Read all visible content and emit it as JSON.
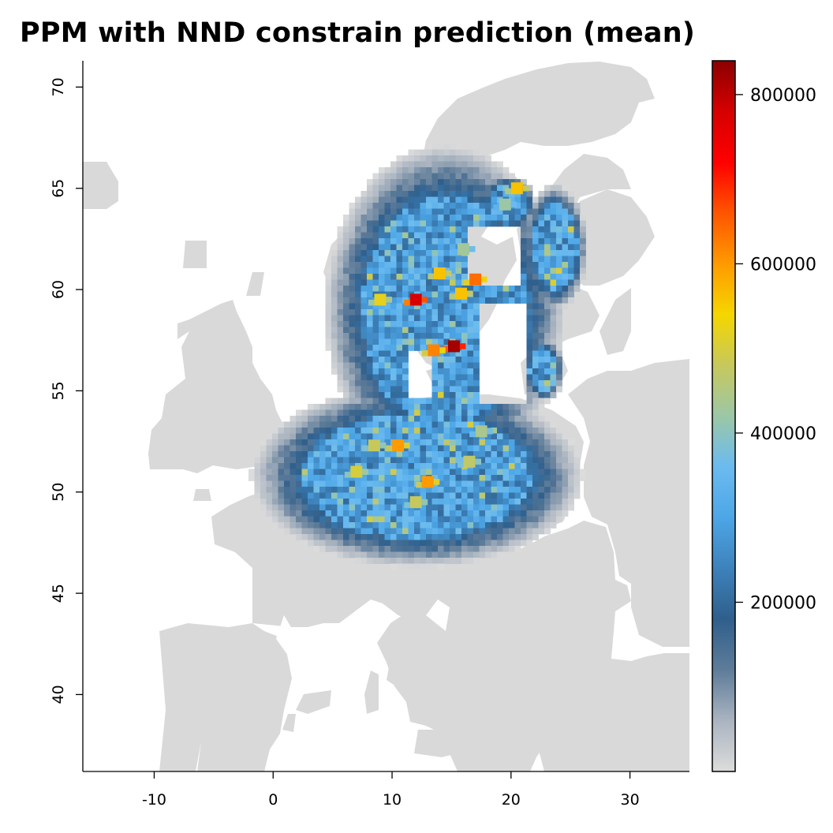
{
  "title": "PPM with NND constrain prediction (mean)",
  "colors": {
    "land": "#d9d9d9",
    "scale": [
      "#dcdcdc",
      "#aab4c0",
      "#5e7c99",
      "#2f5f8c",
      "#3d82bb",
      "#4da6e6",
      "#6bbbf0",
      "#9cc7a6",
      "#c7c85c",
      "#f5d600",
      "#ff9a00",
      "#ff5500",
      "#ff0000",
      "#d60000",
      "#8b0000"
    ]
  },
  "chart_data": {
    "type": "heatmap",
    "title": "PPM with NND constrain prediction (mean)",
    "xlabel": "",
    "ylabel": "",
    "xlim": [
      -16,
      35
    ],
    "ylim": [
      36.2,
      71.3
    ],
    "x_ticks": [
      -10,
      0,
      10,
      20,
      30
    ],
    "y_ticks": [
      40,
      45,
      50,
      55,
      60,
      65,
      70
    ],
    "legend": {
      "placement": "right",
      "range": [
        0,
        840000
      ],
      "ticks": [
        200000,
        400000,
        600000,
        800000
      ]
    },
    "hotspots": [
      {
        "lon": 15.2,
        "lat": 57.2,
        "value": 820000
      },
      {
        "lon": 12.0,
        "lat": 59.5,
        "value": 780000
      },
      {
        "lon": 17.0,
        "lat": 60.5,
        "value": 640000
      },
      {
        "lon": 13.5,
        "lat": 57.0,
        "value": 620000
      },
      {
        "lon": 13.0,
        "lat": 50.5,
        "value": 600000
      },
      {
        "lon": 10.5,
        "lat": 52.3,
        "value": 600000
      },
      {
        "lon": 20.5,
        "lat": 65.0,
        "value": 560000
      },
      {
        "lon": 14.0,
        "lat": 60.8,
        "value": 560000
      },
      {
        "lon": 15.8,
        "lat": 59.8,
        "value": 560000
      },
      {
        "lon": 9.0,
        "lat": 59.5,
        "value": 520000
      },
      {
        "lon": 7.0,
        "lat": 51.0,
        "value": 500000
      },
      {
        "lon": 8.5,
        "lat": 52.3,
        "value": 480000
      },
      {
        "lon": 12.0,
        "lat": 49.5,
        "value": 480000
      },
      {
        "lon": 16.5,
        "lat": 51.5,
        "value": 470000
      },
      {
        "lon": 17.5,
        "lat": 53.0,
        "value": 440000
      },
      {
        "lon": 16.0,
        "lat": 62.0,
        "value": 430000
      },
      {
        "lon": 19.5,
        "lat": 64.2,
        "value": 420000
      }
    ]
  }
}
